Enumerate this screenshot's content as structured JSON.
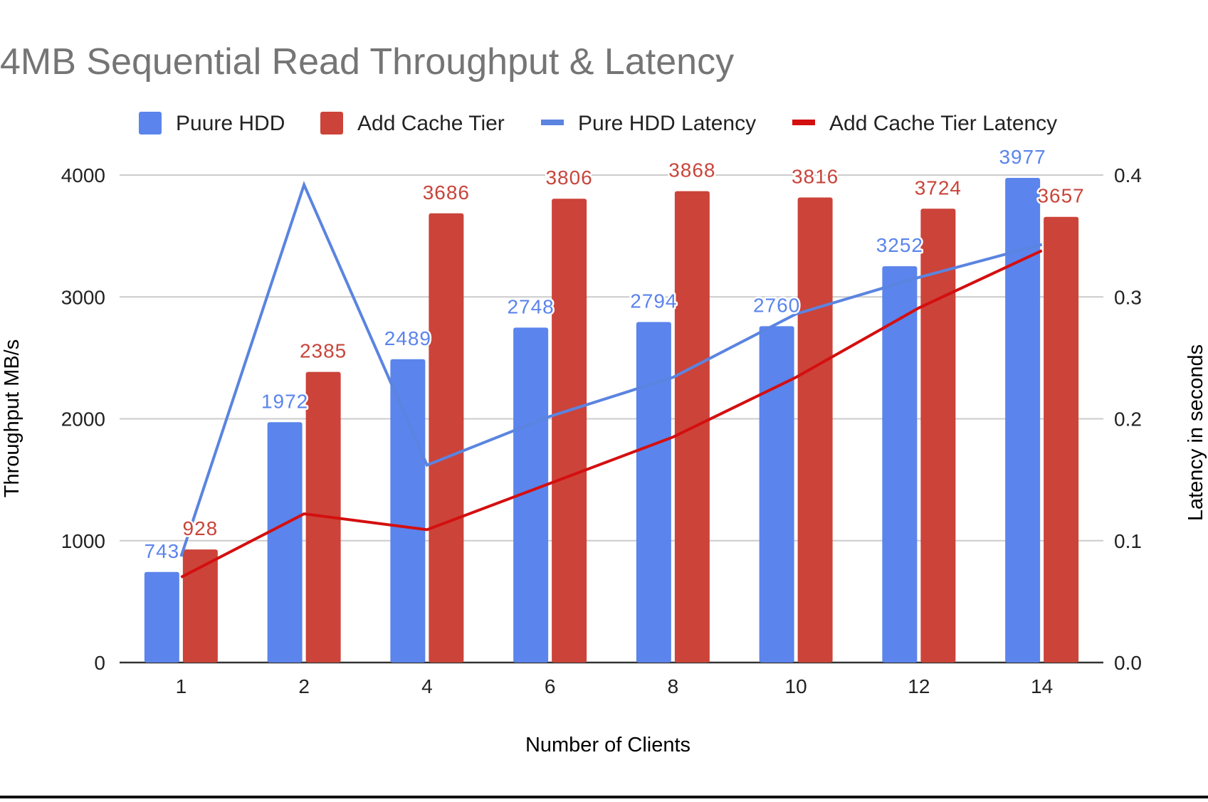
{
  "chart_data": {
    "type": "bar",
    "title": "4MB Sequential Read Throughput & Latency",
    "xlabel": "Number of Clients",
    "ylabel": "Throughput MB/s",
    "y2label": "Latency in seconds",
    "categories": [
      "1",
      "2",
      "4",
      "6",
      "8",
      "10",
      "12",
      "14"
    ],
    "ylim": [
      0,
      4000
    ],
    "y2lim": [
      0,
      0.4
    ],
    "yticks": [
      "0",
      "1000",
      "2000",
      "3000",
      "4000"
    ],
    "y2ticks": [
      "0.0",
      "0.1",
      "0.2",
      "0.3",
      "0.4"
    ],
    "grid": true,
    "legend_position": "top",
    "series": [
      {
        "name": "Puure HDD",
        "kind": "bar",
        "axis": "left",
        "color": "#5b84ec",
        "label_color": "#5b84ec",
        "values": [
          743,
          1972,
          2489,
          2748,
          2794,
          2760,
          3252,
          3977
        ]
      },
      {
        "name": "Add Cache Tier",
        "kind": "bar",
        "axis": "left",
        "color": "#cc4339",
        "label_color": "#c8453b",
        "values": [
          928,
          2385,
          3686,
          3806,
          3868,
          3816,
          3724,
          3657
        ]
      },
      {
        "name": "Pure HDD Latency",
        "kind": "line",
        "axis": "right",
        "color": "#5b84e0",
        "values": [
          0.087,
          0.392,
          0.162,
          0.202,
          0.234,
          0.286,
          0.316,
          0.343
        ]
      },
      {
        "name": "Add Cache Tier  Latency",
        "kind": "line",
        "axis": "right",
        "color": "#d40f0f",
        "values": [
          0.07,
          0.122,
          0.109,
          0.147,
          0.185,
          0.234,
          0.291,
          0.338
        ]
      }
    ]
  }
}
